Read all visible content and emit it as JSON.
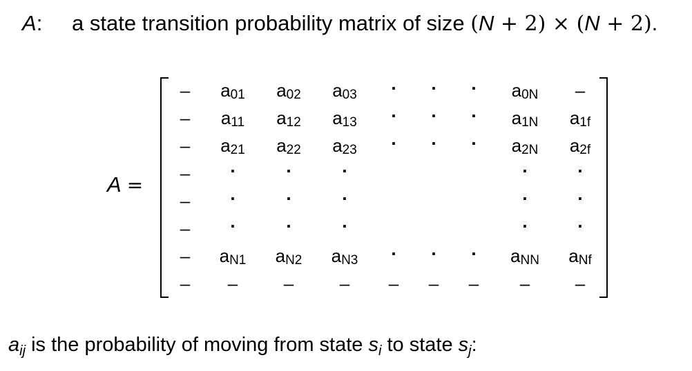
{
  "definition": {
    "symbol": "A",
    "colon": ":",
    "text_before": "a state transition probability matrix of size",
    "size_open": "(",
    "size_n1": "N",
    "size_plus1": " + 2)",
    "size_times": "×",
    "size_open2": "(",
    "size_n2": "N",
    "size_plus2": " + 2)",
    "period": "."
  },
  "equation": {
    "lhs_symbol": "A",
    "equals": "="
  },
  "matrix": {
    "rows": [
      [
        "–",
        "a|01",
        "a|02",
        "a|03",
        ".",
        ".",
        ".",
        "a|0N",
        "–"
      ],
      [
        "–",
        "a|11",
        "a|12",
        "a|13",
        ".",
        ".",
        ".",
        "a|1N",
        "a|1f"
      ],
      [
        "–",
        "a|21",
        "a|22",
        "a|23",
        ".",
        ".",
        ".",
        "a|2N",
        "a|2f"
      ],
      [
        "–",
        ".",
        ".",
        ".",
        "",
        "",
        "",
        ".",
        "."
      ],
      [
        "–",
        ".",
        ".",
        ".",
        "",
        "",
        "",
        ".",
        "."
      ],
      [
        "–",
        ".",
        ".",
        ".",
        "",
        "",
        "",
        ".",
        "."
      ],
      [
        "–",
        "a|N1",
        "a|N2",
        "a|N3",
        ".",
        ".",
        ".",
        "a|NN",
        "a|Nf"
      ],
      [
        "–",
        "–",
        "–",
        "–",
        "–",
        "–",
        "–",
        "–",
        "–"
      ]
    ]
  },
  "footer": {
    "a": "a",
    "a_sub": "ij",
    "text1": " is the probability of moving from state ",
    "s1": "s",
    "s1_sub": "i",
    "text2": " to state ",
    "s2": "s",
    "s2_sub": "j",
    "end": ":"
  }
}
